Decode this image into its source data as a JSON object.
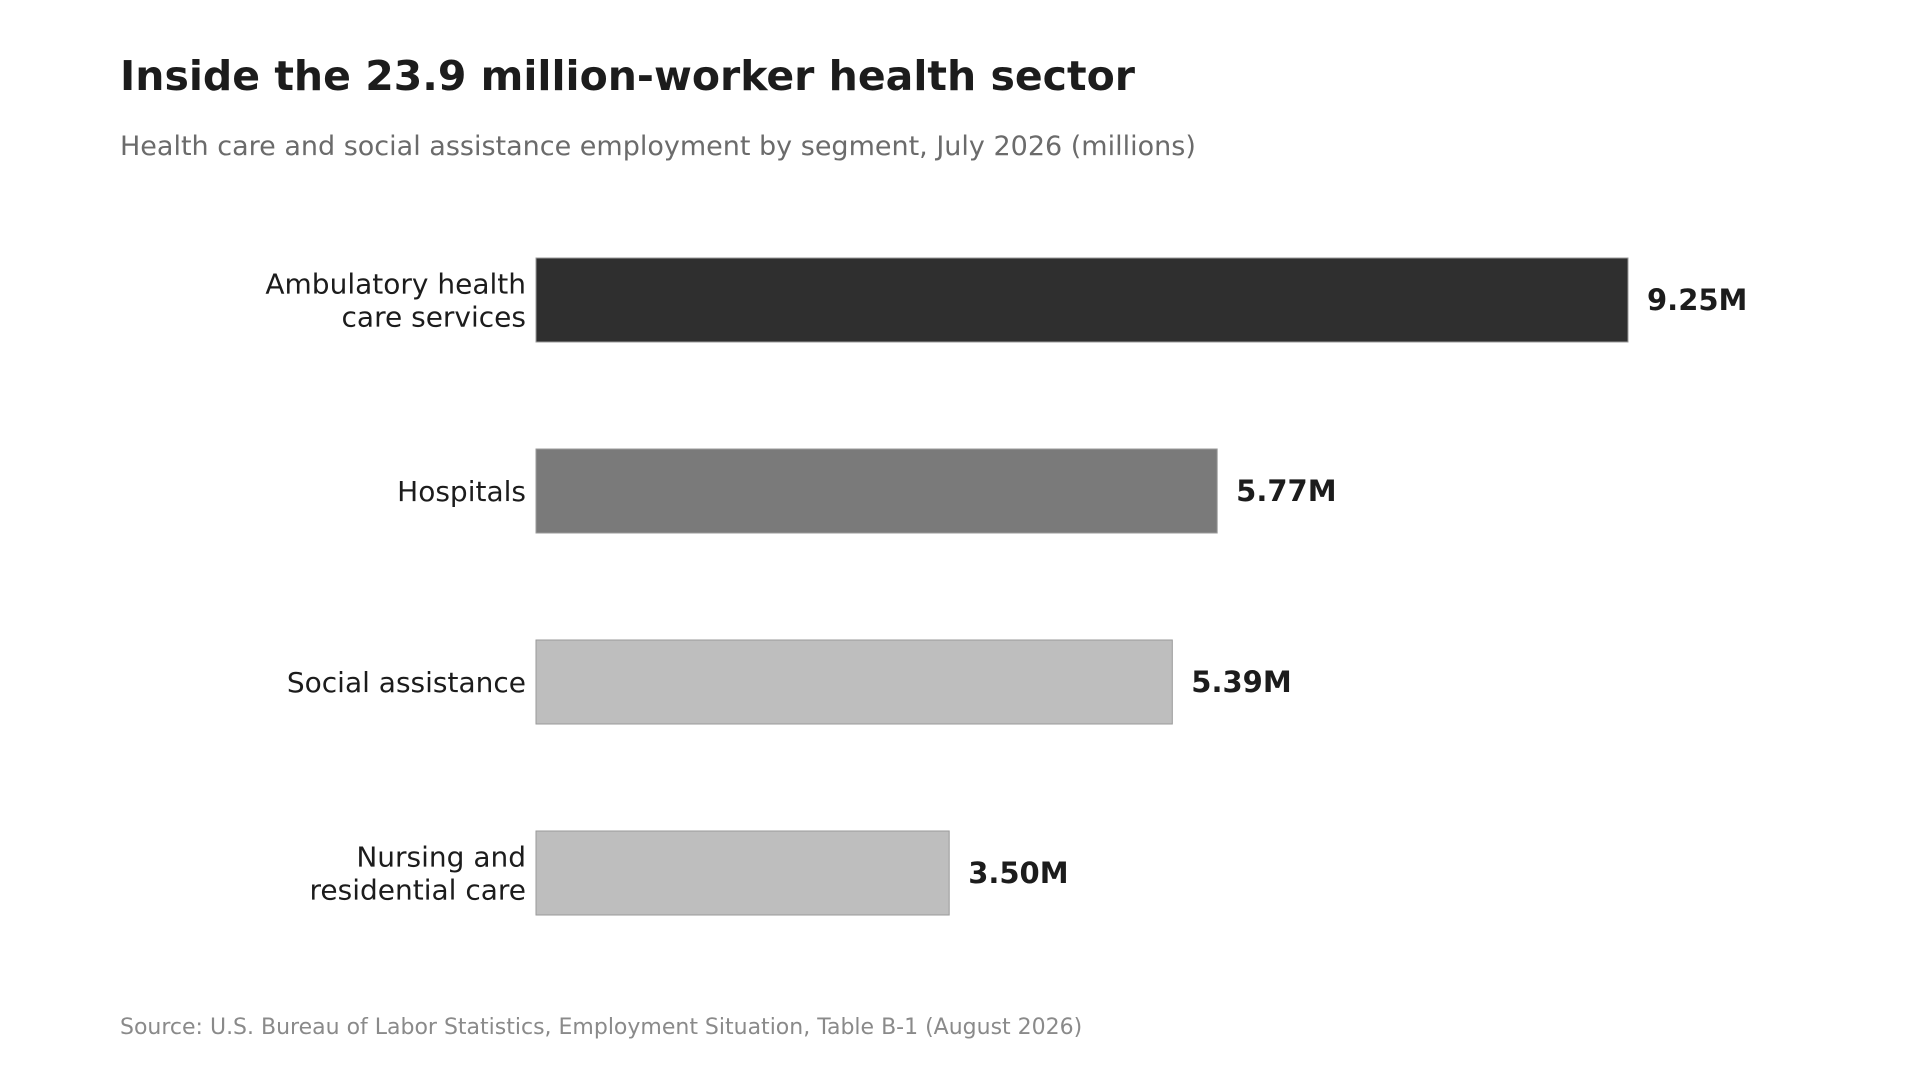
{
  "title": "Inside the 23.9 million-worker health sector",
  "subtitle": "Health care and social assistance employment by segment, July 2026 (millions)",
  "source": "Source: U.S. Bureau of Labor Statistics, Employment Situation, Table B-1 (August 2026)",
  "chart_data": {
    "type": "bar",
    "orientation": "horizontal",
    "title": "Inside the 23.9 million-worker health sector",
    "subtitle": "Health care and social assistance employment by segment, July 2026 (millions)",
    "categories": [
      [
        "Ambulatory health",
        "care services"
      ],
      [
        "Hospitals"
      ],
      [
        "Social assistance"
      ],
      [
        "Nursing and",
        "residential care"
      ]
    ],
    "values": [
      9.25,
      5.77,
      5.39,
      3.5
    ],
    "value_labels": [
      "9.25M",
      "5.77M",
      "5.39M",
      "3.50M"
    ],
    "colors": [
      "#2f2f2f",
      "#7a7a7a",
      "#bebebe",
      "#bebebe"
    ],
    "xlim": [
      0,
      9.25
    ],
    "grid": false,
    "legend": "none"
  }
}
